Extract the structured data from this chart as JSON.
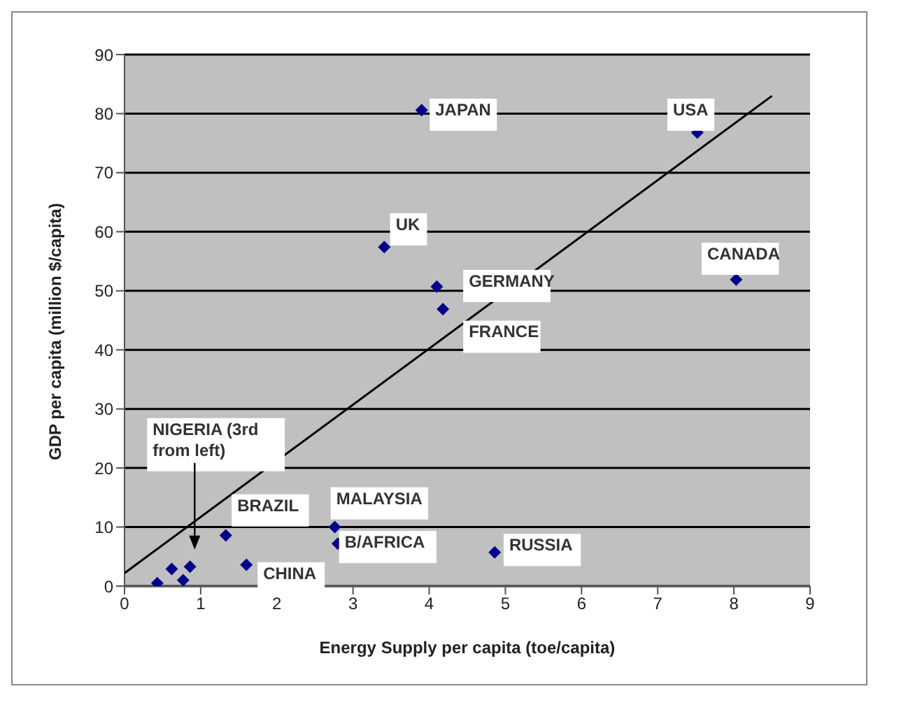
{
  "chart_data": {
    "type": "scatter",
    "xlabel": "Energy Supply per capita (toe/capita)",
    "ylabel": "GDP per capita (million $/capita)",
    "xlim": [
      0,
      9
    ],
    "xticks": [
      0,
      1,
      2,
      3,
      4,
      5,
      6,
      7,
      8,
      9
    ],
    "ylim": [
      0,
      90
    ],
    "yticks": [
      0,
      10,
      20,
      30,
      40,
      50,
      60,
      70,
      80,
      90
    ],
    "grid": "y",
    "marker": "diamond",
    "series": [
      {
        "color": "#00008b",
        "x": [
          3.9,
          7.52,
          3.41,
          4.1,
          4.18,
          8.03,
          1.33,
          2.76,
          2.8,
          1.6,
          4.86,
          0.43,
          0.62,
          0.77,
          0.86
        ],
        "values": [
          80.6,
          76.8,
          57.4,
          50.7,
          46.9,
          51.9,
          8.6,
          10,
          7.2,
          3.6,
          5.7,
          0.5,
          2.9,
          1,
          3.3
        ]
      },
      {
        "type": "line",
        "marker": "none",
        "color": "#000000",
        "x": [
          0,
          8.5
        ],
        "values": [
          2.2,
          83
        ]
      }
    ],
    "annotations": [
      {
        "text": "JAPAN",
        "x": 3.9,
        "y": 80.6
      },
      {
        "text": "USA",
        "x": 7.52,
        "y": 76.8
      },
      {
        "text": "UK",
        "x": 3.41,
        "y": 57.4
      },
      {
        "text": "GERMANY",
        "x": 4.1,
        "y": 50.7
      },
      {
        "text": "FRANCE",
        "x": 4.18,
        "y": 46.9
      },
      {
        "text": "CANADA",
        "x": 8.03,
        "y": 51.9
      },
      "NIGERIA (3rd from left)",
      {
        "text": "BRAZIL",
        "x": 1.33,
        "y": 8.6
      },
      {
        "text": "MALAYSIA",
        "x": 2.76,
        "y": 10
      },
      {
        "text": "B/AFRICA",
        "x": 2.8,
        "y": 7.2
      },
      {
        "text": "CHINA",
        "x": 1.6,
        "y": 3.6
      },
      {
        "text": "RUSSIA",
        "x": 4.86,
        "y": 5.7
      }
    ]
  }
}
